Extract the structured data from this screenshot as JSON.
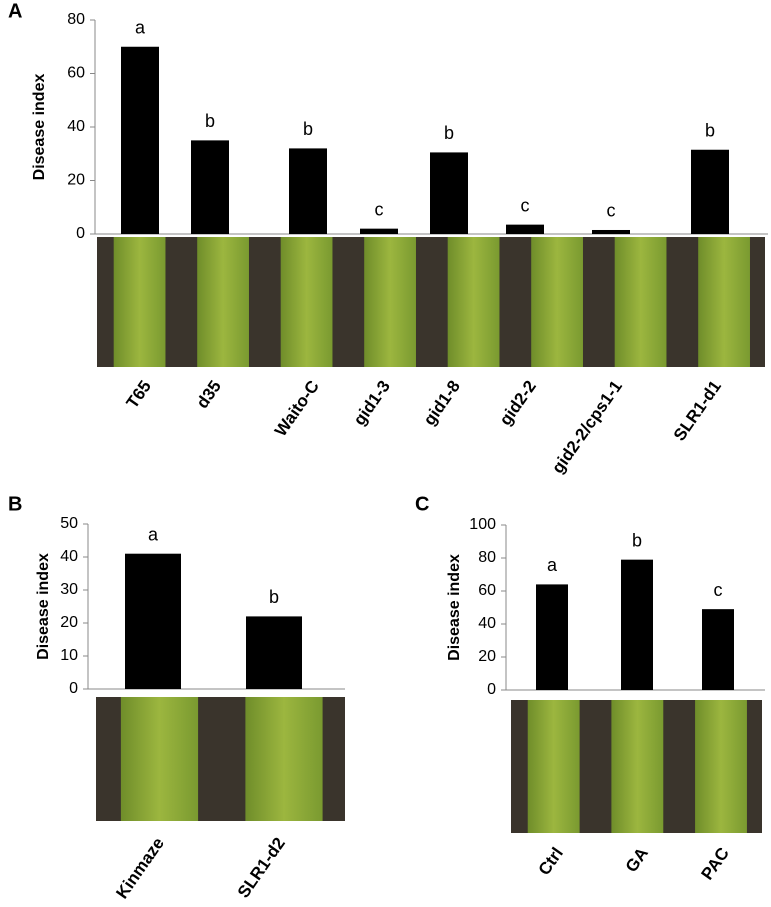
{
  "chart_data": [
    {
      "type": "bar",
      "panel": "A",
      "ylabel": "Disease index",
      "categories": [
        "T65",
        "d35",
        "Waito-C",
        "gid1-3",
        "gid1-8",
        "gid2-2",
        "gid2-2/cps1-1",
        "SLR1-d1"
      ],
      "values": [
        70,
        35,
        32,
        2,
        30.5,
        3.5,
        1.5,
        31.5
      ],
      "annotations": [
        "a",
        "b",
        "b",
        "c",
        "b",
        "c",
        "c",
        "b"
      ],
      "color": "#000000",
      "ylim": [
        0,
        80
      ],
      "yticks": [
        0,
        20,
        40,
        60,
        80
      ]
    },
    {
      "type": "bar",
      "panel": "B",
      "ylabel": "Disease index",
      "categories": [
        "Kinmaze",
        "SLR1-d2"
      ],
      "values": [
        41,
        22
      ],
      "annotations": [
        "a",
        "b"
      ],
      "color": "#000000",
      "ylim": [
        0,
        50
      ],
      "yticks": [
        0,
        10,
        20,
        30,
        40,
        50
      ]
    },
    {
      "type": "bar",
      "panel": "C",
      "ylabel": "Disease index",
      "categories": [
        "Ctrl",
        "GA",
        "PAC"
      ],
      "values": [
        64,
        79,
        49
      ],
      "annotations": [
        "a",
        "b",
        "c"
      ],
      "color": "#000000",
      "ylim": [
        0,
        100
      ],
      "yticks": [
        0,
        20,
        40,
        60,
        80,
        100
      ]
    }
  ]
}
